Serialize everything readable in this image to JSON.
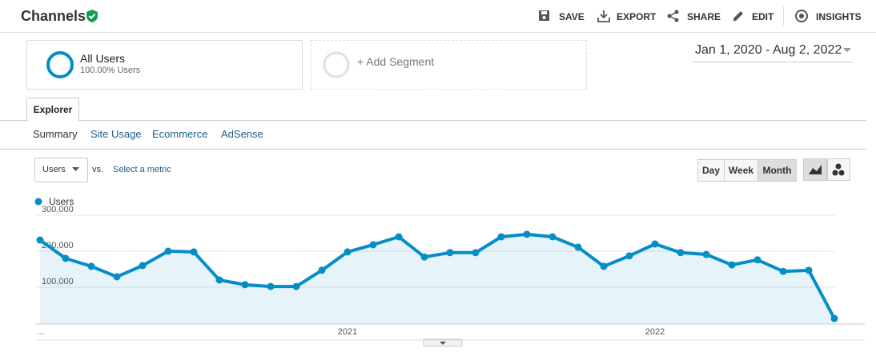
{
  "header": {
    "title": "Channels",
    "actions": [
      "SAVE",
      "EXPORT",
      "SHARE",
      "EDIT",
      "INSIGHTS"
    ]
  },
  "segments": {
    "active": {
      "name": "All Users",
      "detail": "100.00% Users"
    },
    "add": "+ Add Segment"
  },
  "date_range": "Jan 1, 2020 - Aug 2, 2022",
  "tab": "Explorer",
  "subtabs": [
    "Summary",
    "Site Usage",
    "Ecommerce",
    "AdSense"
  ],
  "controls": {
    "metric": "Users",
    "vs": "vs.",
    "select": "Select a metric",
    "periods": [
      "Day",
      "Week",
      "Month"
    ]
  },
  "chart_data": {
    "type": "line",
    "x_labels_note": null,
    "categories": [
      "...",
      null,
      null,
      null,
      null,
      null,
      null,
      null,
      null,
      null,
      null,
      null,
      "2021",
      null,
      null,
      null,
      null,
      null,
      null,
      null,
      null,
      null,
      null,
      null,
      "2022",
      null,
      null,
      null,
      null,
      null,
      null,
      null
    ],
    "series": [
      {
        "name": "Users",
        "color": "#058dc7",
        "values": [
          231000,
          180000,
          158000,
          129000,
          160000,
          200000,
          198000,
          120000,
          107000,
          102000,
          102000,
          147000,
          198000,
          218000,
          240000,
          184000,
          196000,
          196000,
          240000,
          247000,
          240000,
          211000,
          158000,
          187000,
          220000,
          196000,
          191000,
          162000,
          176000,
          144000,
          147000,
          13000
        ]
      }
    ],
    "ylim": [
      0,
      300000
    ],
    "yticks": [
      {
        "value": 100000,
        "label": "100,000"
      },
      {
        "value": 200000,
        "label": "200,000"
      },
      {
        "value": 300000,
        "label": "300,000"
      }
    ],
    "grid": true
  }
}
